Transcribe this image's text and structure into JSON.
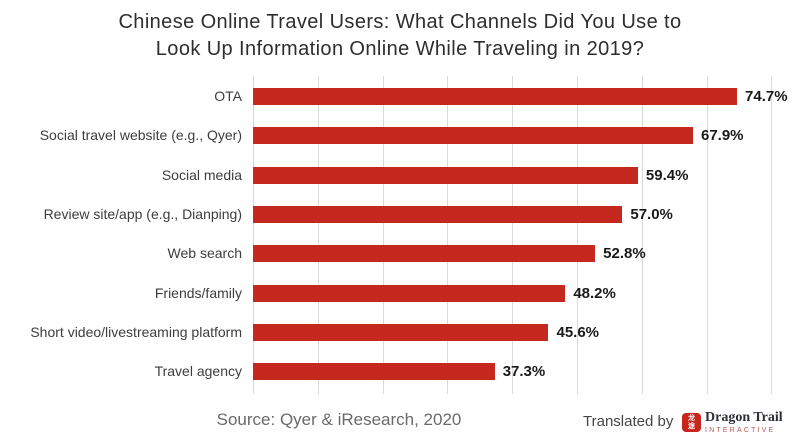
{
  "title": {
    "lines": [
      "Chinese Online Travel Users: What Channels Did You Use to",
      "Look Up Information Online While Traveling in 2019?"
    ]
  },
  "chart_data": {
    "type": "bar",
    "orientation": "horizontal",
    "title": "Chinese Online Travel Users: What Channels Did You Use to Look Up Information Online While Traveling in 2019?",
    "categories": [
      "OTA",
      "Social travel website (e.g., Qyer)",
      "Social media",
      "Review site/app (e.g., Dianping)",
      "Web search",
      "Friends/family",
      "Short video/livestreaming platform",
      "Travel agency"
    ],
    "values": [
      74.7,
      67.9,
      59.4,
      57.0,
      52.8,
      48.2,
      45.6,
      37.3
    ],
    "value_labels": [
      "74.7%",
      "67.9%",
      "59.4%",
      "57.0%",
      "52.8%",
      "48.2%",
      "45.6%",
      "37.3%"
    ],
    "xlabel": "",
    "ylabel": "",
    "xlim": [
      0,
      84
    ],
    "gridlines_percent": [
      0,
      10,
      20,
      30,
      40,
      50,
      60,
      70,
      80
    ],
    "grid": true,
    "legend": false,
    "bar_color": "#c5281f"
  },
  "footer": {
    "source": "Source: Qyer & iResearch, 2020",
    "translated_by": "Translated by",
    "logo": {
      "seal_text_lines": [
        "龙",
        "途"
      ],
      "name": "Dragon Trail",
      "subtitle": "INTERACTIVE"
    }
  },
  "colors": {
    "bar": "#c5281f",
    "gridline": "#d9d9d9",
    "title_text": "#2e2e2e",
    "category_text": "#3d3d3d",
    "value_text": "#1a1a1a",
    "source_text": "#6a6a6a",
    "logo_seal_red": "#c9251c",
    "logo_name_text": "#2d2f36",
    "logo_subtitle_text": "#b5564c"
  }
}
